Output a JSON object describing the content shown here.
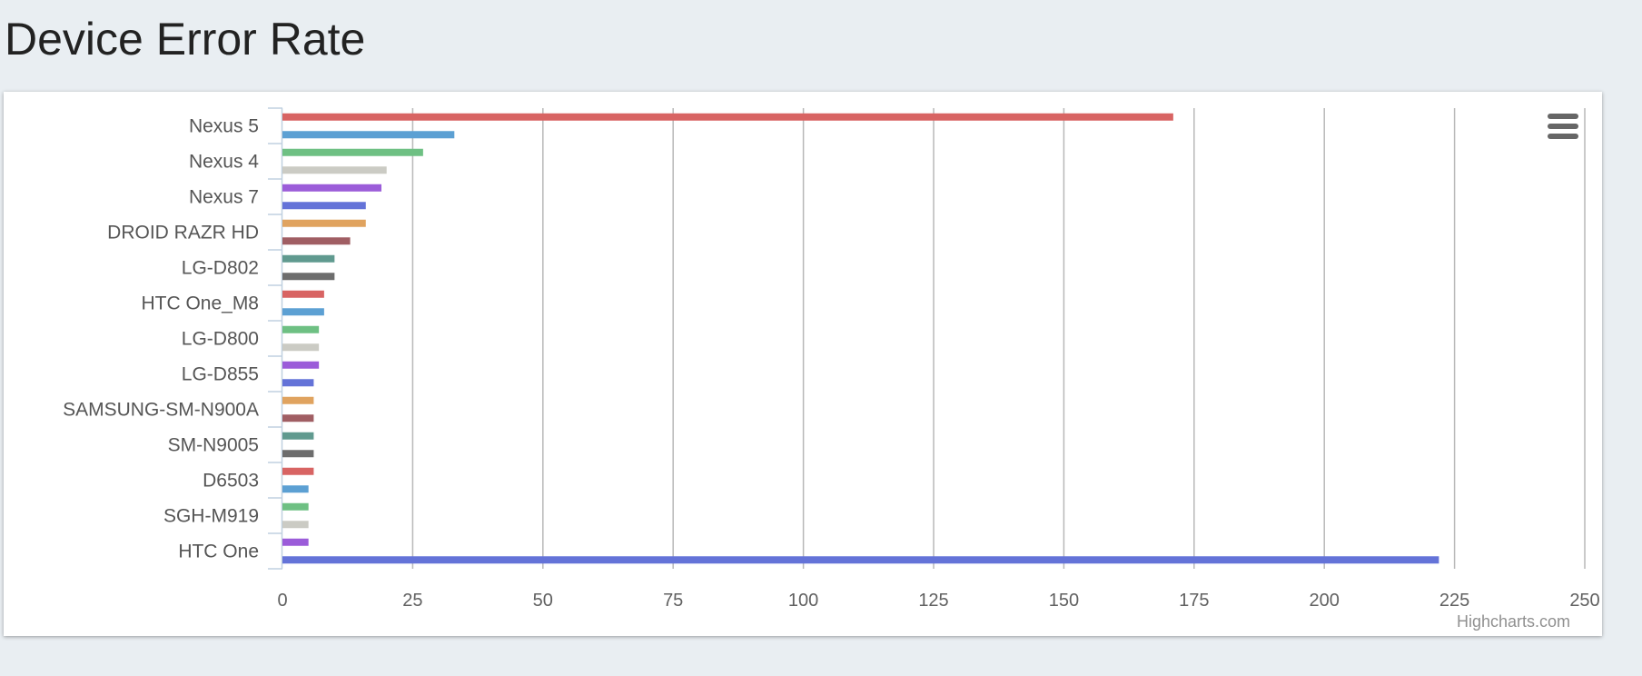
{
  "page": {
    "title": "Device Error Rate"
  },
  "chart_menu": {
    "icon": "hamburger-menu-icon"
  },
  "credits": {
    "text": "Highcharts.com"
  },
  "colors": [
    "#d86463",
    "#5ca0d3",
    "#6ec083",
    "#cbcbc4",
    "#9b5cd9",
    "#6473d8",
    "#e0a35f",
    "#a05e63",
    "#609a8f",
    "#6d6d6d"
  ],
  "chart_data": {
    "type": "bar",
    "orientation": "horizontal",
    "title": "Device Error Rate",
    "xlabel": "",
    "ylabel": "",
    "xlim": [
      0,
      250
    ],
    "ticks": [
      0,
      25,
      50,
      75,
      100,
      125,
      150,
      175,
      200,
      225,
      250
    ],
    "grid": true,
    "legend": "none",
    "categories": [
      "Nexus 5",
      "Nexus 4",
      "Nexus 7",
      "DROID RAZR HD",
      "LG-D802",
      "HTC One_M8",
      "LG-D800",
      "LG-D855",
      "SAMSUNG-SM-N900A",
      "SM-N9005",
      "D6503",
      "SGH-M919",
      "HTC One"
    ],
    "bars": [
      {
        "category": "Nexus 5",
        "value": 171
      },
      {
        "category": "Nexus 5",
        "value": 33
      },
      {
        "category": "Nexus 4",
        "value": 27
      },
      {
        "category": "Nexus 4",
        "value": 20
      },
      {
        "category": "Nexus 7",
        "value": 19
      },
      {
        "category": "Nexus 7",
        "value": 16
      },
      {
        "category": "DROID RAZR HD",
        "value": 16
      },
      {
        "category": "DROID RAZR HD",
        "value": 13
      },
      {
        "category": "LG-D802",
        "value": 10
      },
      {
        "category": "LG-D802",
        "value": 10
      },
      {
        "category": "HTC One_M8",
        "value": 8
      },
      {
        "category": "HTC One_M8",
        "value": 8
      },
      {
        "category": "LG-D800",
        "value": 7
      },
      {
        "category": "LG-D800",
        "value": 7
      },
      {
        "category": "LG-D855",
        "value": 7
      },
      {
        "category": "LG-D855",
        "value": 6
      },
      {
        "category": "SAMSUNG-SM-N900A",
        "value": 6
      },
      {
        "category": "SAMSUNG-SM-N900A",
        "value": 6
      },
      {
        "category": "SM-N9005",
        "value": 6
      },
      {
        "category": "SM-N9005",
        "value": 6
      },
      {
        "category": "D6503",
        "value": 6
      },
      {
        "category": "D6503",
        "value": 5
      },
      {
        "category": "SGH-M919",
        "value": 5
      },
      {
        "category": "SGH-M919",
        "value": 5
      },
      {
        "category": "HTC One",
        "value": 5
      },
      {
        "category": "HTC One",
        "value": 222
      }
    ]
  }
}
